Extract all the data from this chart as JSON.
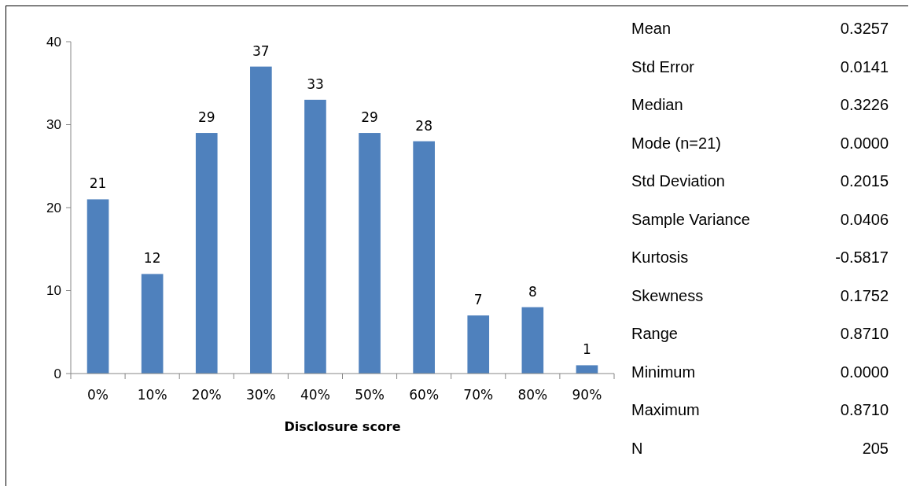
{
  "chart_data": [
    {
      "type": "bar",
      "xlabel": "Disclosure score",
      "categories": [
        "0%",
        "10%",
        "20%",
        "30%",
        "40%",
        "50%",
        "60%",
        "70%",
        "80%",
        "90%"
      ],
      "values": [
        21,
        12,
        29,
        37,
        33,
        29,
        28,
        7,
        8,
        1
      ],
      "color": "#4f81bd",
      "ylim": [
        0,
        40
      ],
      "yticks": [
        0,
        10,
        20,
        30,
        40
      ],
      "data_labels": true,
      "grid": false
    },
    {
      "type": "other",
      "categories": [
        "Mean",
        "Std Error",
        "Median",
        "Mode (n=21)",
        "Std Deviation",
        "Sample Variance",
        "Kurtosis",
        "Skewness",
        "Range",
        "Minimum",
        "Maximum",
        "N"
      ],
      "annotations": [
        "0.3257",
        "0.0141",
        "0.3226",
        "0.0000",
        "0.2015",
        "0.0406",
        "-0.5817",
        "0.1752",
        "0.8710",
        "0.0000",
        "0.8710",
        "205"
      ]
    }
  ]
}
